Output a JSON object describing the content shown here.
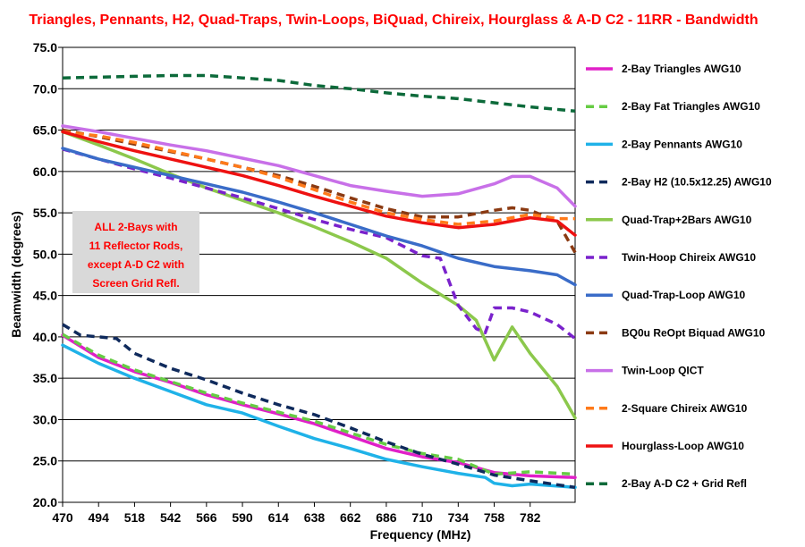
{
  "chart_data": {
    "type": "line",
    "title": "Triangles, Pennants, H2, Quad-Traps, Twin-Loops, BiQuad, Chireix, Hourglass & A-D C2 - 11RR - Bandwidth",
    "xlabel": "Frequency (MHz)",
    "ylabel": "Beamwidth (degrees)",
    "xlim": [
      470,
      812
    ],
    "ylim": [
      20,
      75
    ],
    "x_ticks": [
      "470",
      "494",
      "518",
      "542",
      "566",
      "590",
      "614",
      "638",
      "662",
      "686",
      "710",
      "734",
      "758",
      "782"
    ],
    "y_ticks": [
      "20.0",
      "25.0",
      "30.0",
      "35.0",
      "40.0",
      "45.0",
      "50.0",
      "55.0",
      "60.0",
      "65.0",
      "70.0",
      "75.0"
    ],
    "grid": "horizontal",
    "legend_position": "right",
    "annotation": {
      "lines": [
        "ALL 2-Bays with",
        "11 Reflector Rods,",
        "except A-D C2 with",
        "Screen Grid Refl."
      ]
    },
    "series": [
      {
        "name": "2-Bay Triangles AWG10",
        "color": "#e020c8",
        "dash": "solid",
        "points": [
          [
            470,
            40.2
          ],
          [
            494,
            37.5
          ],
          [
            518,
            35.8
          ],
          [
            542,
            34.5
          ],
          [
            566,
            33.0
          ],
          [
            590,
            31.8
          ],
          [
            614,
            30.7
          ],
          [
            638,
            29.5
          ],
          [
            662,
            28.0
          ],
          [
            686,
            26.5
          ],
          [
            710,
            25.5
          ],
          [
            734,
            24.8
          ],
          [
            758,
            23.6
          ],
          [
            782,
            23.2
          ],
          [
            812,
            23.0
          ]
        ]
      },
      {
        "name": "2-Bay Fat Triangles AWG10",
        "color": "#66cc44",
        "dash": "dashed",
        "points": [
          [
            470,
            40.3
          ],
          [
            494,
            37.8
          ],
          [
            518,
            36.0
          ],
          [
            542,
            34.6
          ],
          [
            566,
            33.2
          ],
          [
            590,
            32.0
          ],
          [
            614,
            30.9
          ],
          [
            638,
            29.8
          ],
          [
            662,
            28.4
          ],
          [
            686,
            27.0
          ],
          [
            710,
            25.9
          ],
          [
            734,
            25.2
          ],
          [
            758,
            23.4
          ],
          [
            782,
            23.7
          ],
          [
            812,
            23.4
          ]
        ]
      },
      {
        "name": "2-Bay Pennants AWG10",
        "color": "#1fb2e8",
        "dash": "solid",
        "points": [
          [
            470,
            39.0
          ],
          [
            494,
            36.8
          ],
          [
            518,
            35.0
          ],
          [
            542,
            33.4
          ],
          [
            566,
            31.8
          ],
          [
            590,
            30.8
          ],
          [
            614,
            29.2
          ],
          [
            638,
            27.7
          ],
          [
            662,
            26.5
          ],
          [
            686,
            25.2
          ],
          [
            710,
            24.3
          ],
          [
            734,
            23.5
          ],
          [
            752,
            23.0
          ],
          [
            758,
            22.3
          ],
          [
            770,
            22.0
          ],
          [
            782,
            22.2
          ],
          [
            812,
            21.8
          ]
        ]
      },
      {
        "name": "2-Bay H2 (10.5x12.25) AWG10",
        "color": "#0f2a5c",
        "dash": "dashed",
        "points": [
          [
            470,
            41.5
          ],
          [
            482,
            40.2
          ],
          [
            494,
            40.0
          ],
          [
            506,
            39.8
          ],
          [
            518,
            38.0
          ],
          [
            542,
            36.2
          ],
          [
            566,
            34.8
          ],
          [
            590,
            33.2
          ],
          [
            614,
            31.8
          ],
          [
            638,
            30.6
          ],
          [
            662,
            29.0
          ],
          [
            686,
            27.3
          ],
          [
            710,
            25.8
          ],
          [
            734,
            24.6
          ],
          [
            758,
            23.3
          ],
          [
            782,
            22.6
          ],
          [
            812,
            21.8
          ]
        ]
      },
      {
        "name": "Quad-Trap+2Bars  AWG10",
        "color": "#8cc84c",
        "dash": "solid",
        "points": [
          [
            470,
            64.8
          ],
          [
            494,
            63.2
          ],
          [
            518,
            61.5
          ],
          [
            542,
            59.7
          ],
          [
            566,
            58.0
          ],
          [
            590,
            56.5
          ],
          [
            614,
            55.0
          ],
          [
            638,
            53.3
          ],
          [
            662,
            51.5
          ],
          [
            686,
            49.5
          ],
          [
            710,
            46.5
          ],
          [
            734,
            43.8
          ],
          [
            746,
            42.0
          ],
          [
            758,
            37.2
          ],
          [
            770,
            41.2
          ],
          [
            782,
            38.0
          ],
          [
            800,
            34.0
          ],
          [
            812,
            30.2
          ]
        ]
      },
      {
        "name": "Twin-Hoop Chireix AWG10",
        "color": "#7a22cc",
        "dash": "dashed",
        "points": [
          [
            470,
            62.7
          ],
          [
            494,
            61.5
          ],
          [
            518,
            60.3
          ],
          [
            542,
            59.2
          ],
          [
            566,
            58.0
          ],
          [
            590,
            56.8
          ],
          [
            614,
            55.5
          ],
          [
            638,
            54.2
          ],
          [
            662,
            53.0
          ],
          [
            686,
            52.0
          ],
          [
            710,
            49.8
          ],
          [
            722,
            49.5
          ],
          [
            734,
            43.8
          ],
          [
            746,
            41.0
          ],
          [
            752,
            40.5
          ],
          [
            758,
            43.5
          ],
          [
            770,
            43.5
          ],
          [
            782,
            43.0
          ],
          [
            800,
            41.5
          ],
          [
            812,
            39.8
          ]
        ]
      },
      {
        "name": "Quad-Trap-Loop  AWG10",
        "color": "#3a6cc8",
        "dash": "solid",
        "points": [
          [
            470,
            62.8
          ],
          [
            494,
            61.5
          ],
          [
            518,
            60.5
          ],
          [
            542,
            59.5
          ],
          [
            566,
            58.5
          ],
          [
            590,
            57.5
          ],
          [
            614,
            56.3
          ],
          [
            638,
            55.0
          ],
          [
            662,
            53.6
          ],
          [
            686,
            52.2
          ],
          [
            710,
            51.0
          ],
          [
            734,
            49.5
          ],
          [
            758,
            48.5
          ],
          [
            782,
            48.0
          ],
          [
            800,
            47.5
          ],
          [
            812,
            46.3
          ]
        ]
      },
      {
        "name": "BQ0u ReOpt Biquad AWG10",
        "color": "#8b3a12",
        "dash": "dashed",
        "points": [
          [
            470,
            65.0
          ],
          [
            494,
            64.2
          ],
          [
            518,
            63.3
          ],
          [
            542,
            62.4
          ],
          [
            566,
            61.5
          ],
          [
            590,
            60.5
          ],
          [
            614,
            59.5
          ],
          [
            638,
            58.2
          ],
          [
            662,
            56.8
          ],
          [
            686,
            55.5
          ],
          [
            710,
            54.5
          ],
          [
            734,
            54.5
          ],
          [
            758,
            55.3
          ],
          [
            770,
            55.6
          ],
          [
            782,
            55.3
          ],
          [
            800,
            54.0
          ],
          [
            812,
            50.2
          ]
        ]
      },
      {
        "name": "Twin-Loop QICT",
        "color": "#c870e8",
        "dash": "solid",
        "points": [
          [
            470,
            65.5
          ],
          [
            494,
            64.8
          ],
          [
            518,
            64.0
          ],
          [
            542,
            63.2
          ],
          [
            566,
            62.5
          ],
          [
            590,
            61.6
          ],
          [
            614,
            60.7
          ],
          [
            638,
            59.5
          ],
          [
            662,
            58.3
          ],
          [
            686,
            57.6
          ],
          [
            710,
            57.0
          ],
          [
            734,
            57.3
          ],
          [
            758,
            58.5
          ],
          [
            770,
            59.4
          ],
          [
            782,
            59.4
          ],
          [
            800,
            58.0
          ],
          [
            812,
            55.8
          ]
        ]
      },
      {
        "name": "2-Square Chireix AWG10",
        "color": "#ff7a1a",
        "dash": "dashed",
        "points": [
          [
            470,
            64.8
          ],
          [
            494,
            64.3
          ],
          [
            518,
            63.5
          ],
          [
            542,
            62.5
          ],
          [
            566,
            61.5
          ],
          [
            590,
            60.5
          ],
          [
            614,
            59.3
          ],
          [
            638,
            57.8
          ],
          [
            662,
            56.3
          ],
          [
            686,
            55.0
          ],
          [
            710,
            54.2
          ],
          [
            734,
            53.6
          ],
          [
            758,
            54.0
          ],
          [
            782,
            54.8
          ],
          [
            800,
            54.3
          ],
          [
            812,
            54.3
          ]
        ]
      },
      {
        "name": "Hourglass-Loop  AWG10",
        "color": "#ee1111",
        "dash": "solid",
        "points": [
          [
            470,
            64.8
          ],
          [
            494,
            63.6
          ],
          [
            518,
            62.5
          ],
          [
            542,
            61.5
          ],
          [
            566,
            60.5
          ],
          [
            590,
            59.5
          ],
          [
            614,
            58.3
          ],
          [
            638,
            57.0
          ],
          [
            662,
            55.8
          ],
          [
            686,
            54.6
          ],
          [
            710,
            53.8
          ],
          [
            734,
            53.2
          ],
          [
            758,
            53.6
          ],
          [
            782,
            54.4
          ],
          [
            800,
            54.0
          ],
          [
            812,
            52.3
          ]
        ]
      },
      {
        "name": "2-Bay A-D C2 + Grid Refl",
        "color": "#0c6a3a",
        "dash": "dashed",
        "points": [
          [
            470,
            71.3
          ],
          [
            494,
            71.4
          ],
          [
            518,
            71.5
          ],
          [
            542,
            71.6
          ],
          [
            566,
            71.6
          ],
          [
            590,
            71.3
          ],
          [
            614,
            71.0
          ],
          [
            638,
            70.4
          ],
          [
            662,
            70.0
          ],
          [
            686,
            69.5
          ],
          [
            710,
            69.1
          ],
          [
            734,
            68.8
          ],
          [
            758,
            68.3
          ],
          [
            782,
            67.8
          ],
          [
            812,
            67.3
          ]
        ]
      }
    ]
  }
}
